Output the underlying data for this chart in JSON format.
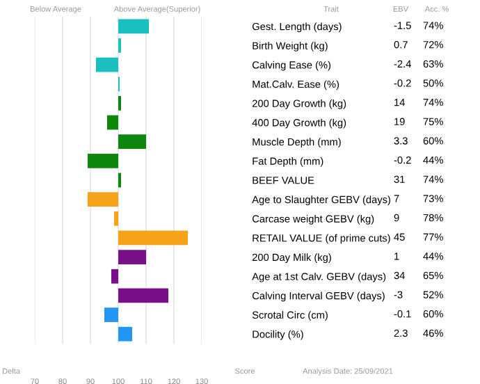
{
  "chart_data": {
    "type": "bar",
    "orientation": "horizontal",
    "categories": [
      "Gest. Length (days)",
      "Birth Weight (kg)",
      "Calving Ease (%)",
      "Mat.Calv. Ease (%)",
      "200 Day Growth (kg)",
      "400 Day Growth (kg)",
      "Muscle Depth (mm)",
      "Fat Depth (mm)",
      "BEEF VALUE",
      "Age to Slaughter GEBV (days)",
      "Carcase weight GEBV (kg)",
      "RETAIL VALUE (of prime cuts)",
      "200 Day Milk (kg)",
      "Age at 1st Calv. GEBV (days)",
      "Calving Interval GEBV (days)",
      "Scrotal Circ (cm)",
      "Docility (%)"
    ],
    "base": [
      100,
      100,
      100,
      100,
      100,
      100,
      100,
      100,
      100,
      100,
      100,
      100,
      100,
      100,
      100,
      100,
      100
    ],
    "values": [
      11,
      1,
      -8,
      0.5,
      1,
      -4,
      10,
      -11,
      1,
      -11,
      -1.5,
      25,
      10,
      -2.5,
      18,
      -5,
      5
    ],
    "colors": [
      "#1bbfbf",
      "#1bbfbf",
      "#1bbfbf",
      "#1bbfbf",
      "#0f870f",
      "#0f870f",
      "#0f870f",
      "#0f870f",
      "#0f870f",
      "#f7a21b",
      "#f7a21b",
      "#f7a21b",
      "#7a0f8a",
      "#7a0f8a",
      "#7a0f8a",
      "#2196f3",
      "#2196f3"
    ],
    "xlim": [
      70,
      130
    ],
    "xticks": [
      70,
      80,
      90,
      100,
      110,
      120,
      130
    ],
    "grid": "x",
    "annotations": [
      "Below Average",
      "Above Average(Superior)",
      "Trait",
      "EBV",
      "Acc. %",
      "Delta",
      "Score",
      "Analysis Date: 25/09/2021",
      "-1.5",
      "74%",
      "0.7",
      "72%",
      "-2.4",
      "63%",
      "-0.2",
      "50%",
      "14",
      "74%",
      "19",
      "75%",
      "3.3",
      "60%",
      "-0.2",
      "44%",
      "31",
      "74%",
      "7",
      "73%",
      "9",
      "78%",
      "45",
      "77%",
      "1",
      "44%",
      "34",
      "65%",
      "-3",
      "52%",
      "-0.1",
      "60%",
      "2.3",
      "46%"
    ]
  }
}
